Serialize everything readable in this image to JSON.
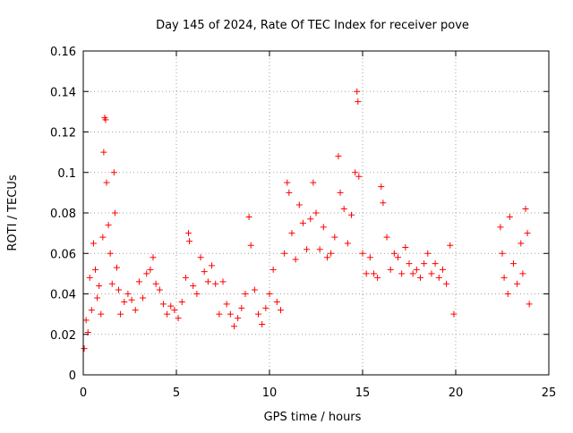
{
  "chart_data": {
    "type": "scatter",
    "title": "Day 145 of 2024, Rate Of TEC Index for receiver pove",
    "xlabel": "GPS time / hours",
    "ylabel": "ROTI / TECUs",
    "xlim": [
      0,
      25
    ],
    "ylim": [
      0,
      0.16
    ],
    "x_ticks": [
      0,
      5,
      10,
      15,
      20,
      25
    ],
    "y_ticks": [
      0,
      0.02,
      0.04,
      0.06,
      0.08,
      0.1,
      0.12,
      0.14,
      0.16
    ],
    "x_tick_labels": [
      "0",
      "5",
      "10",
      "15",
      "20",
      "25"
    ],
    "y_tick_labels": [
      "0",
      "0.02",
      "0.04",
      "0.06",
      "0.08",
      "0.1",
      "0.12",
      "0.14",
      "0.16"
    ],
    "grid": true,
    "marker": "plus",
    "color": "#ff0000",
    "data_gaps_hours": [
      [
        20.0,
        22.3
      ]
    ],
    "series": [
      {
        "points": [
          [
            0.05,
            0.013
          ],
          [
            0.15,
            0.027
          ],
          [
            0.25,
            0.021
          ],
          [
            0.35,
            0.048
          ],
          [
            0.45,
            0.032
          ],
          [
            0.55,
            0.065
          ],
          [
            0.65,
            0.052
          ],
          [
            0.75,
            0.038
          ],
          [
            0.85,
            0.044
          ],
          [
            0.95,
            0.03
          ],
          [
            1.05,
            0.068
          ],
          [
            1.1,
            0.11
          ],
          [
            1.15,
            0.127
          ],
          [
            1.2,
            0.126
          ],
          [
            1.25,
            0.095
          ],
          [
            1.35,
            0.074
          ],
          [
            1.45,
            0.06
          ],
          [
            1.55,
            0.045
          ],
          [
            1.65,
            0.1
          ],
          [
            1.7,
            0.08
          ],
          [
            1.8,
            0.053
          ],
          [
            1.9,
            0.042
          ],
          [
            2.0,
            0.03
          ],
          [
            2.2,
            0.036
          ],
          [
            2.4,
            0.04
          ],
          [
            2.6,
            0.037
          ],
          [
            2.8,
            0.032
          ],
          [
            3.0,
            0.046
          ],
          [
            3.2,
            0.038
          ],
          [
            3.4,
            0.05
          ],
          [
            3.6,
            0.052
          ],
          [
            3.75,
            0.058
          ],
          [
            3.9,
            0.045
          ],
          [
            4.1,
            0.042
          ],
          [
            4.3,
            0.035
          ],
          [
            4.5,
            0.03
          ],
          [
            4.7,
            0.034
          ],
          [
            4.9,
            0.032
          ],
          [
            5.1,
            0.028
          ],
          [
            5.3,
            0.036
          ],
          [
            5.5,
            0.048
          ],
          [
            5.65,
            0.07
          ],
          [
            5.7,
            0.066
          ],
          [
            5.9,
            0.044
          ],
          [
            6.1,
            0.04
          ],
          [
            6.3,
            0.058
          ],
          [
            6.5,
            0.051
          ],
          [
            6.7,
            0.046
          ],
          [
            6.9,
            0.054
          ],
          [
            7.1,
            0.045
          ],
          [
            7.3,
            0.03
          ],
          [
            7.5,
            0.046
          ],
          [
            7.7,
            0.035
          ],
          [
            7.9,
            0.03
          ],
          [
            8.1,
            0.024
          ],
          [
            8.3,
            0.028
          ],
          [
            8.5,
            0.033
          ],
          [
            8.7,
            0.04
          ],
          [
            8.9,
            0.078
          ],
          [
            9.0,
            0.064
          ],
          [
            9.2,
            0.042
          ],
          [
            9.4,
            0.03
          ],
          [
            9.6,
            0.025
          ],
          [
            9.8,
            0.033
          ],
          [
            10.0,
            0.04
          ],
          [
            10.2,
            0.052
          ],
          [
            10.4,
            0.036
          ],
          [
            10.6,
            0.032
          ],
          [
            10.8,
            0.06
          ],
          [
            10.95,
            0.095
          ],
          [
            11.05,
            0.09
          ],
          [
            11.2,
            0.07
          ],
          [
            11.4,
            0.057
          ],
          [
            11.6,
            0.084
          ],
          [
            11.8,
            0.075
          ],
          [
            12.0,
            0.062
          ],
          [
            12.2,
            0.077
          ],
          [
            12.35,
            0.095
          ],
          [
            12.5,
            0.08
          ],
          [
            12.7,
            0.062
          ],
          [
            12.9,
            0.073
          ],
          [
            13.1,
            0.058
          ],
          [
            13.3,
            0.06
          ],
          [
            13.5,
            0.068
          ],
          [
            13.7,
            0.108
          ],
          [
            13.8,
            0.09
          ],
          [
            14.0,
            0.082
          ],
          [
            14.2,
            0.065
          ],
          [
            14.4,
            0.079
          ],
          [
            14.6,
            0.1
          ],
          [
            14.7,
            0.14
          ],
          [
            14.75,
            0.135
          ],
          [
            14.8,
            0.098
          ],
          [
            15.0,
            0.06
          ],
          [
            15.2,
            0.05
          ],
          [
            15.4,
            0.058
          ],
          [
            15.6,
            0.05
          ],
          [
            15.8,
            0.048
          ],
          [
            16.0,
            0.093
          ],
          [
            16.1,
            0.085
          ],
          [
            16.3,
            0.068
          ],
          [
            16.5,
            0.052
          ],
          [
            16.7,
            0.06
          ],
          [
            16.9,
            0.058
          ],
          [
            17.1,
            0.05
          ],
          [
            17.3,
            0.063
          ],
          [
            17.5,
            0.055
          ],
          [
            17.7,
            0.05
          ],
          [
            17.9,
            0.052
          ],
          [
            18.1,
            0.048
          ],
          [
            18.3,
            0.055
          ],
          [
            18.5,
            0.06
          ],
          [
            18.7,
            0.05
          ],
          [
            18.9,
            0.055
          ],
          [
            19.1,
            0.048
          ],
          [
            19.3,
            0.052
          ],
          [
            19.5,
            0.045
          ],
          [
            19.7,
            0.064
          ],
          [
            19.9,
            0.03
          ],
          [
            22.4,
            0.073
          ],
          [
            22.5,
            0.06
          ],
          [
            22.6,
            0.048
          ],
          [
            22.8,
            0.04
          ],
          [
            22.9,
            0.078
          ],
          [
            23.1,
            0.055
          ],
          [
            23.3,
            0.045
          ],
          [
            23.5,
            0.065
          ],
          [
            23.6,
            0.05
          ],
          [
            23.75,
            0.082
          ],
          [
            23.85,
            0.07
          ],
          [
            23.95,
            0.035
          ]
        ]
      }
    ]
  }
}
